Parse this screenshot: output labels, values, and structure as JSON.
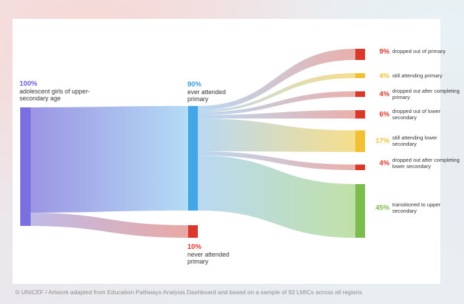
{
  "nodes": {
    "source": {
      "percent": "100%",
      "label": "adolescent girls of upper-secondary age",
      "color": "#7b6fe0"
    },
    "attended": {
      "percent": "90%",
      "label": "ever attended primary",
      "color": "#43a6e6"
    },
    "never": {
      "percent": "10%",
      "label": "never attended primary",
      "color": "#d9382b"
    }
  },
  "outcomes": [
    {
      "percent": "9%",
      "label": "dropped out of primary",
      "color": "#d9382b"
    },
    {
      "percent": "4%",
      "label": "still attending primary",
      "color": "#f3bf33"
    },
    {
      "percent": "4%",
      "label": "dropped out after completing primary",
      "color": "#d9382b"
    },
    {
      "percent": "6%",
      "label": "dropped out of lower secondary",
      "color": "#d9382b"
    },
    {
      "percent": "17%",
      "label": "still attending lower secondary",
      "color": "#f3bf33"
    },
    {
      "percent": "4%",
      "label": "dropped out after completing lower secondary",
      "color": "#d9382b"
    },
    {
      "percent": "45%",
      "label": "transitioned to upper secondary",
      "color": "#7cbb4e"
    }
  ],
  "credit": "© UNICEF / Artwork adapted from Education Pathways Analysis Dashboard and based on a sample of 92 LMICs across all regions"
}
